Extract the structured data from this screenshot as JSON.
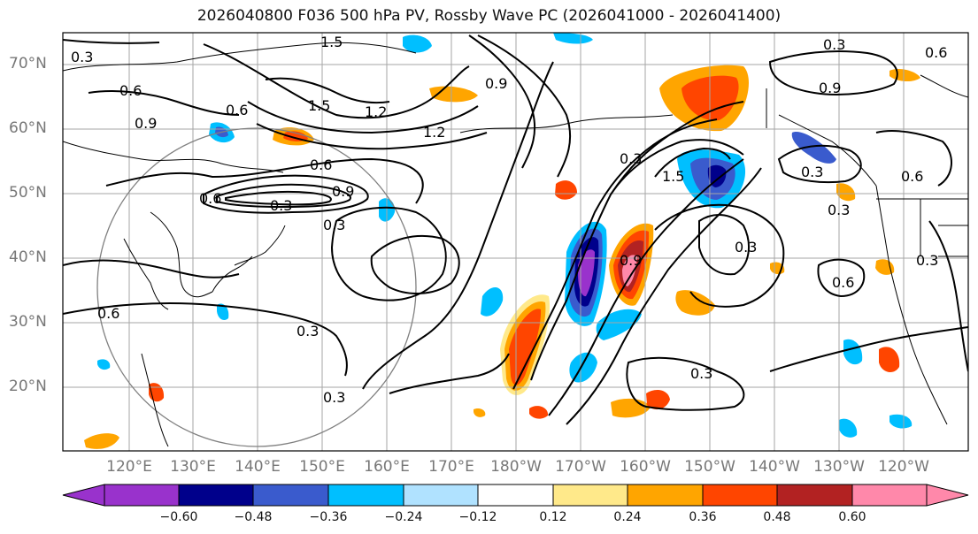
{
  "title": "2026040800 F036 500 hPa PV, Rossby Wave PC (2026041000 - 2026041400)",
  "lat_labels": [
    "70°N",
    "60°N",
    "50°N",
    "40°N",
    "30°N",
    "20°N"
  ],
  "lon_labels": [
    "120°E",
    "130°E",
    "140°E",
    "150°E",
    "160°E",
    "170°E",
    "180°W",
    "170°W",
    "160°W",
    "150°W",
    "140°W",
    "130°W",
    "120°W"
  ],
  "contour_labels": [
    "1.5",
    "0.3",
    "0.6",
    "0.9",
    "0.6",
    "1.5",
    "1.2",
    "1.2",
    "0.9",
    "0.6",
    "0.9",
    "0.3",
    "0.3",
    "0.3",
    "0.6",
    "0.3",
    "0.6",
    "0.9",
    "0.3",
    "1.5",
    "0.3",
    "0.6",
    "0.6",
    "0.3",
    "0.3",
    "0.3",
    "0.9",
    "0.3",
    "0.6",
    "0.3"
  ],
  "colorbar": {
    "ticks": [
      "−0.60",
      "−0.48",
      "−0.36",
      "−0.24",
      "−0.12",
      "0.12",
      "0.24",
      "0.36",
      "0.48",
      "0.60"
    ],
    "colors": [
      "#9932cc",
      "#00008b",
      "#3a5bcd",
      "#00bfff",
      "#b0e2ff",
      "#ffffff",
      "#ffe98a",
      "#ffa500",
      "#ff4500",
      "#b22222",
      "#ff88aa"
    ]
  },
  "fill_colors": {
    "neg_light": "#b0e2ff",
    "neg_mid": "#00bfff",
    "neg_strong": "#3a5bcd",
    "neg_deep": "#00008b",
    "neg_extreme": "#9932cc",
    "pos_light": "#ffe98a",
    "pos_mid": "#ffa500",
    "pos_strong": "#ff4500",
    "pos_deep": "#b22222",
    "pos_extreme": "#ff88aa"
  }
}
